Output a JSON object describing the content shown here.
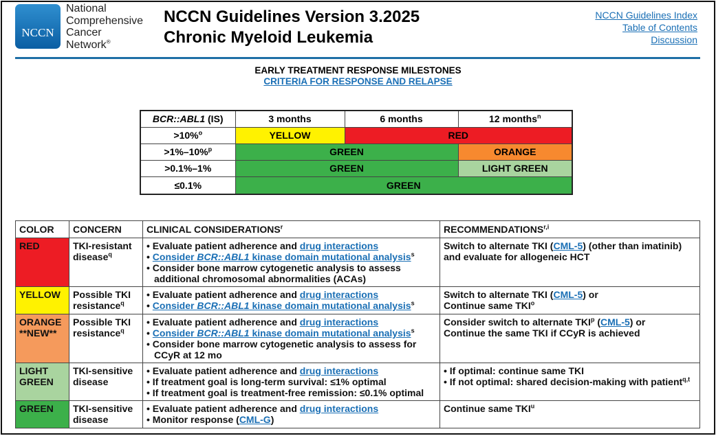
{
  "header": {
    "logo_text": "NCCN",
    "org_lines": [
      "National",
      "Comprehensive",
      "Cancer",
      "Network"
    ],
    "org_reg": "®",
    "title_line1": "NCCN Guidelines Version 3.2025",
    "title_line2": "Chronic Myeloid Leukemia",
    "links": [
      "NCCN Guidelines Index",
      "Table of Contents",
      "Discussion"
    ]
  },
  "section": {
    "heading": "EARLY TREATMENT RESPONSE MILESTONES",
    "link": "CRITERIA FOR RESPONSE AND RELAPSE"
  },
  "colors": {
    "red": "#ed1c24",
    "yellow": "#fff200",
    "green": "#3cb04a",
    "orange": "#f7892f",
    "orange_light": "#f59a5c",
    "light_green": "#a9d49f",
    "link": "#1a6fb5",
    "rule": "#1e6fa6"
  },
  "milestones": {
    "header": {
      "gene": "BCR::ABL1",
      "gene_suffix": " (IS)",
      "cols": [
        "3 months",
        "6 months",
        "12 months"
      ],
      "col3_sup": "n"
    },
    "rows": [
      {
        "label": ">10%",
        "sup": "o",
        "cells": [
          "YELLOW",
          "RED"
        ]
      },
      {
        "label": ">1%–10%",
        "sup": "p",
        "cells": [
          "GREEN",
          "ORANGE"
        ]
      },
      {
        "label": ">0.1%–1%",
        "sup": "",
        "cells": [
          "GREEN",
          "LIGHT GREEN"
        ]
      },
      {
        "label": "≤0.1%",
        "sup": "",
        "cells": [
          "GREEN"
        ]
      }
    ]
  },
  "table": {
    "headers": {
      "color": "COLOR",
      "concern": "CONCERN",
      "clinical": "CLINICAL CONSIDERATIONS",
      "clinical_sup": "r",
      "recs": "RECOMMENDATIONS",
      "recs_sup": "r,i"
    },
    "common": {
      "eval": "Evaluate patient adherence and ",
      "drug_link": "drug interactions",
      "mut_prefix": "Consider ",
      "mut_italic": "BCR::ABL1",
      "mut_suffix": " kinase domain mutational analysis",
      "mut_sup": "s",
      "cml5": "CML-5"
    },
    "rows": [
      {
        "color": "RED",
        "concern": "TKI-resistant disease",
        "concern_sup": "q",
        "extra": "Consider bone marrow cytogenetic analysis to assess additional chromosomal abnormalities (ACAs)",
        "rec_a": "Switch to alternate TKI (",
        "rec_b": ") (other than imatinib) and evaluate for allogeneic HCT"
      },
      {
        "color": "YELLOW",
        "concern": "Possible TKI resistance",
        "concern_sup": "q",
        "rec_a": "Switch to alternate TKI (",
        "rec_b": ") or",
        "rec_c": "Continue same TKI",
        "rec_c_sup": "o"
      },
      {
        "color": "ORANGE",
        "color2": "**NEW**",
        "concern": "Possible TKI resistance",
        "concern_sup": "q",
        "extra": "Consider bone marrow cytogenetic analysis to assess for CCyR at 12 mo",
        "rec_a": "Consider switch to alternate TKI",
        "rec_a_sup": "p",
        "rec_b": " (",
        "rec_c": ") or",
        "rec_d": "Continue the same TKI if CCyR is achieved"
      },
      {
        "color": "LIGHT GREEN",
        "concern": "TKI-sensitive disease",
        "items": [
          "If treatment goal is long-term survival: ≤1% optimal",
          "If treatment goal is treatment-free remission: ≤0.1% optimal"
        ],
        "recs": [
          "If optimal: continue same TKI",
          "If not optimal: shared decision-making with patient"
        ],
        "rec_sup": "q,t"
      },
      {
        "color": "GREEN",
        "concern": "TKI-sensitive disease",
        "monitor": "Monitor response (",
        "monitor_link": "CML-G",
        "monitor_end": ")",
        "rec": "Continue same TKI",
        "rec_sup": "u"
      }
    ]
  }
}
